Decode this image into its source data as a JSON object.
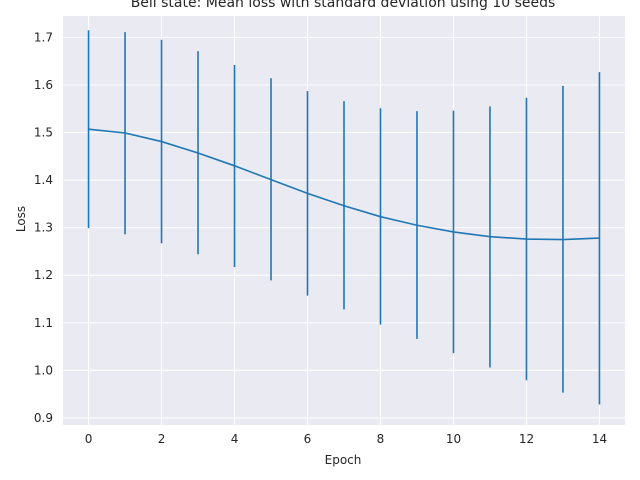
{
  "chart_data": {
    "type": "line",
    "title": "Bell state: Mean loss with standard deviation using 10 seeds",
    "xlabel": "Epoch",
    "ylabel": "Loss",
    "x": [
      0,
      1,
      2,
      3,
      4,
      5,
      6,
      7,
      8,
      9,
      10,
      11,
      12,
      13,
      14
    ],
    "series": [
      {
        "values": [
          1.507,
          1.499,
          1.481,
          1.457,
          1.43,
          1.401,
          1.372,
          1.346,
          1.323,
          1.305,
          1.291,
          1.281,
          1.276,
          1.275,
          1.278
        ],
        "lower": [
          1.299,
          1.286,
          1.267,
          1.244,
          1.217,
          1.189,
          1.157,
          1.128,
          1.096,
          1.066,
          1.036,
          1.006,
          0.979,
          0.953,
          0.928
        ],
        "upper": [
          1.715,
          1.711,
          1.695,
          1.671,
          1.642,
          1.614,
          1.587,
          1.566,
          1.551,
          1.545,
          1.546,
          1.555,
          1.573,
          1.598,
          1.627
        ],
        "color": "#1f77b4"
      }
    ],
    "xticks": [
      0,
      2,
      4,
      6,
      8,
      10,
      12,
      14
    ],
    "yticks": [
      0.9,
      1.0,
      1.1,
      1.2,
      1.3,
      1.4,
      1.5,
      1.6,
      1.7
    ],
    "xlim": [
      -0.7,
      14.7
    ],
    "ylim": [
      0.885,
      1.745
    ],
    "grid": true,
    "background": "#eaeaf2",
    "grid_color": "#ffffff"
  }
}
